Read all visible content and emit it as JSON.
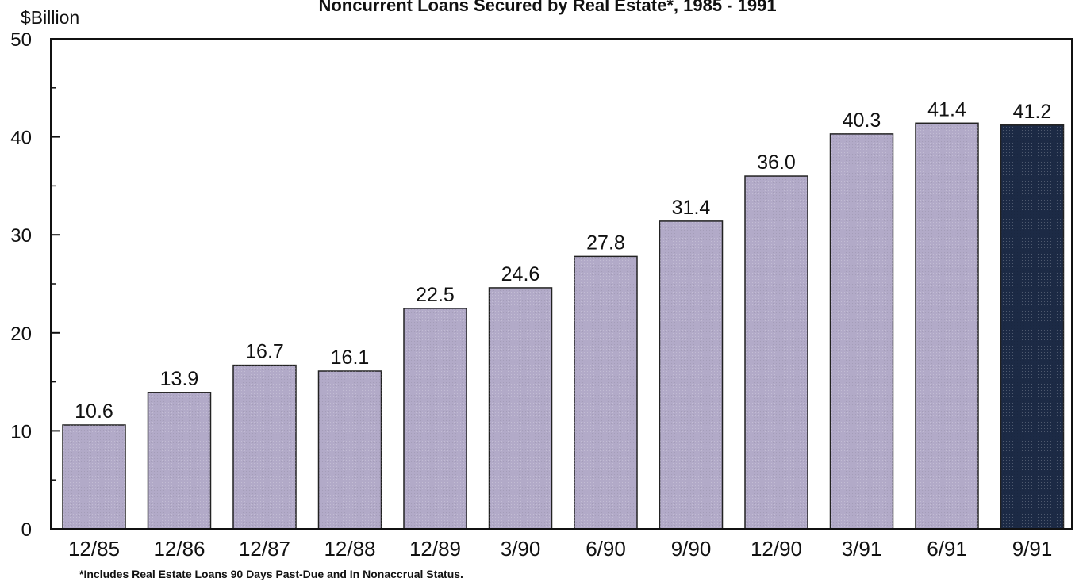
{
  "title": "Noncurrent Loans Secured by Real Estate*, 1985 - 1991",
  "footnote": "*Includes Real Estate Loans 90 Days Past-Due and In Nonaccrual Status.",
  "colors": {
    "bar": "#b2aac8",
    "bar_highlight": "#1c2a45",
    "axis": "#111111",
    "text": "#111111"
  },
  "chart_data": {
    "type": "bar",
    "title": "Noncurrent Loans Secured by Real Estate*, 1985 - 1991",
    "ylabel": "$Billion",
    "xlabel": "",
    "ylim": [
      0,
      50
    ],
    "yticks": [
      0,
      10,
      20,
      30,
      40,
      50
    ],
    "grid": false,
    "categories": [
      "12/85",
      "12/86",
      "12/87",
      "12/88",
      "12/89",
      "3/90",
      "6/90",
      "9/90",
      "12/90",
      "3/91",
      "6/91",
      "9/91"
    ],
    "values": [
      10.6,
      13.9,
      16.7,
      16.1,
      22.5,
      24.6,
      27.8,
      31.4,
      36.0,
      40.3,
      41.4,
      41.2
    ],
    "value_labels": [
      "10.6",
      "13.9",
      "16.7",
      "16.1",
      "22.5",
      "24.6",
      "27.8",
      "31.4",
      "36.0",
      "40.3",
      "41.4",
      "41.2"
    ],
    "highlighted_category": "9/91"
  }
}
